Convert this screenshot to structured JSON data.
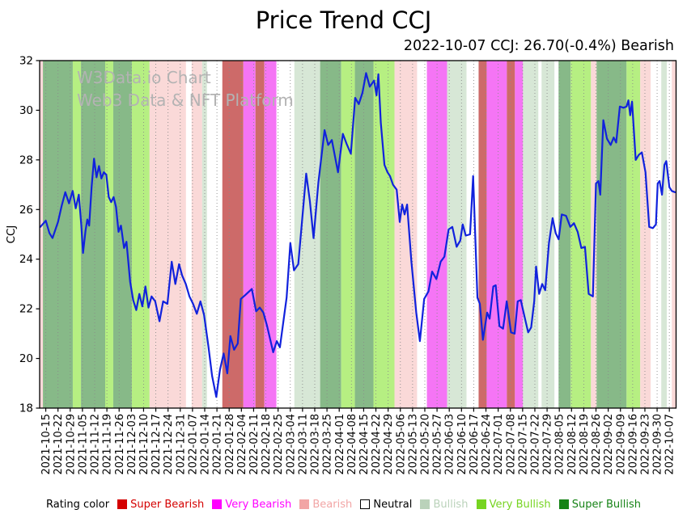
{
  "title": "Price Trend CCJ",
  "subtitle": "2022-10-07 CCJ: 26.70(-0.4%) Bearish",
  "watermark": {
    "line1": "W3Data.io Chart",
    "line2": "Web3 Data & NFT Platform"
  },
  "chart_data": {
    "type": "line",
    "title": "Price Trend CCJ",
    "subtitle": "2022-10-07 CCJ: 26.70(-0.4%) Bearish",
    "ylabel": "CCJ",
    "ylim": [
      18,
      32
    ],
    "yticks": [
      18,
      20,
      22,
      24,
      26,
      28,
      30,
      32
    ],
    "grid": "vertical-dotted-at-each-x-tick",
    "x_unit": "week_index (0 = first tick label, 1 per tick)",
    "x_tick_labels": [
      "2021-10-15",
      "2021-10-22",
      "2021-10-29",
      "2021-11-05",
      "2021-11-12",
      "2021-11-19",
      "2021-11-26",
      "2021-12-03",
      "2021-12-10",
      "2021-12-17",
      "2021-12-24",
      "2021-12-31",
      "2022-01-07",
      "2022-01-14",
      "2022-01-21",
      "2022-01-28",
      "2022-02-04",
      "2022-02-11",
      "2022-02-18",
      "2022-02-25",
      "2022-03-04",
      "2022-03-11",
      "2022-03-18",
      "2022-03-25",
      "2022-04-01",
      "2022-04-08",
      "2022-04-15",
      "2022-04-22",
      "2022-04-29",
      "2022-05-06",
      "2022-05-13",
      "2022-05-20",
      "2022-05-27",
      "2022-06-03",
      "2022-06-10",
      "2022-06-17",
      "2022-06-24",
      "2022-07-01",
      "2022-07-08",
      "2022-07-15",
      "2022-07-22",
      "2022-07-29",
      "2022-08-05",
      "2022-08-12",
      "2022-08-19",
      "2022-08-26",
      "2022-09-02",
      "2022-09-09",
      "2022-09-16",
      "2022-09-23",
      "2022-09-30",
      "2022-10-07"
    ],
    "x_domain_weeks": [
      -0.5,
      51.55
    ],
    "last_point": {
      "date": "2022-10-07",
      "value": 26.7,
      "change_pct": -0.4,
      "rating": "Bearish"
    },
    "series": [
      {
        "name": "CCJ",
        "color": "#1122dd",
        "points": [
          [
            -0.45,
            25.3
          ],
          [
            0,
            25.55
          ],
          [
            0.3,
            25.05
          ],
          [
            0.55,
            24.85
          ],
          [
            1.0,
            25.5
          ],
          [
            1.3,
            26.15
          ],
          [
            1.6,
            26.7
          ],
          [
            1.9,
            26.25
          ],
          [
            2.2,
            26.75
          ],
          [
            2.45,
            26.05
          ],
          [
            2.7,
            26.6
          ],
          [
            2.9,
            25.4
          ],
          [
            3.05,
            24.25
          ],
          [
            3.25,
            25.15
          ],
          [
            3.4,
            25.6
          ],
          [
            3.55,
            25.35
          ],
          [
            3.75,
            26.9
          ],
          [
            3.95,
            28.05
          ],
          [
            4.15,
            27.3
          ],
          [
            4.35,
            27.75
          ],
          [
            4.55,
            27.25
          ],
          [
            4.75,
            27.5
          ],
          [
            4.95,
            27.4
          ],
          [
            5.15,
            26.5
          ],
          [
            5.35,
            26.3
          ],
          [
            5.55,
            26.5
          ],
          [
            5.75,
            26.1
          ],
          [
            5.95,
            25.1
          ],
          [
            6.15,
            25.35
          ],
          [
            6.4,
            24.45
          ],
          [
            6.6,
            24.7
          ],
          [
            6.9,
            23.1
          ],
          [
            7.15,
            22.35
          ],
          [
            7.4,
            21.95
          ],
          [
            7.65,
            22.6
          ],
          [
            7.9,
            22.1
          ],
          [
            8.15,
            22.9
          ],
          [
            8.4,
            22.05
          ],
          [
            8.65,
            22.5
          ],
          [
            8.95,
            22.3
          ],
          [
            9.3,
            21.5
          ],
          [
            9.6,
            22.3
          ],
          [
            9.95,
            22.2
          ],
          [
            10.3,
            23.9
          ],
          [
            10.6,
            23.0
          ],
          [
            10.9,
            23.8
          ],
          [
            11.15,
            23.35
          ],
          [
            11.45,
            23.0
          ],
          [
            11.75,
            22.5
          ],
          [
            12.05,
            22.2
          ],
          [
            12.35,
            21.8
          ],
          [
            12.65,
            22.3
          ],
          [
            12.95,
            21.75
          ],
          [
            13.3,
            20.5
          ],
          [
            13.6,
            19.3
          ],
          [
            13.95,
            18.45
          ],
          [
            14.25,
            19.55
          ],
          [
            14.55,
            20.2
          ],
          [
            14.85,
            19.4
          ],
          [
            15.1,
            20.9
          ],
          [
            15.4,
            20.35
          ],
          [
            15.7,
            20.6
          ],
          [
            15.95,
            22.4
          ],
          [
            16.3,
            22.55
          ],
          [
            16.85,
            22.8
          ],
          [
            17.2,
            21.9
          ],
          [
            17.5,
            22.05
          ],
          [
            17.8,
            21.85
          ],
          [
            18.1,
            21.3
          ],
          [
            18.6,
            20.25
          ],
          [
            18.9,
            20.7
          ],
          [
            19.15,
            20.45
          ],
          [
            19.7,
            22.45
          ],
          [
            20.0,
            24.65
          ],
          [
            20.3,
            23.55
          ],
          [
            20.65,
            23.8
          ],
          [
            21.3,
            27.45
          ],
          [
            21.6,
            26.35
          ],
          [
            21.9,
            24.85
          ],
          [
            22.3,
            27.1
          ],
          [
            22.8,
            29.2
          ],
          [
            23.1,
            28.6
          ],
          [
            23.4,
            28.8
          ],
          [
            23.9,
            27.5
          ],
          [
            24.3,
            29.05
          ],
          [
            24.6,
            28.65
          ],
          [
            24.95,
            28.25
          ],
          [
            25.3,
            30.5
          ],
          [
            25.6,
            30.25
          ],
          [
            25.9,
            30.7
          ],
          [
            26.2,
            31.5
          ],
          [
            26.5,
            30.95
          ],
          [
            26.85,
            31.2
          ],
          [
            27.05,
            30.6
          ],
          [
            27.2,
            31.45
          ],
          [
            27.4,
            29.5
          ],
          [
            27.7,
            27.8
          ],
          [
            27.95,
            27.5
          ],
          [
            28.15,
            27.35
          ],
          [
            28.4,
            27.0
          ],
          [
            28.7,
            26.8
          ],
          [
            28.95,
            25.5
          ],
          [
            29.15,
            26.2
          ],
          [
            29.35,
            25.8
          ],
          [
            29.55,
            26.2
          ],
          [
            29.9,
            23.9
          ],
          [
            30.3,
            21.85
          ],
          [
            30.6,
            20.7
          ],
          [
            30.95,
            22.4
          ],
          [
            31.3,
            22.7
          ],
          [
            31.6,
            23.5
          ],
          [
            31.95,
            23.2
          ],
          [
            32.3,
            23.9
          ],
          [
            32.6,
            24.1
          ],
          [
            32.95,
            25.2
          ],
          [
            33.25,
            25.3
          ],
          [
            33.6,
            24.5
          ],
          [
            33.9,
            24.75
          ],
          [
            34.1,
            25.4
          ],
          [
            34.35,
            24.95
          ],
          [
            34.7,
            25.0
          ],
          [
            34.95,
            27.35
          ],
          [
            35.3,
            22.45
          ],
          [
            35.5,
            22.2
          ],
          [
            35.75,
            20.75
          ],
          [
            36.1,
            21.85
          ],
          [
            36.3,
            21.6
          ],
          [
            36.6,
            22.9
          ],
          [
            36.8,
            22.95
          ],
          [
            37.1,
            21.3
          ],
          [
            37.4,
            21.2
          ],
          [
            37.7,
            22.3
          ],
          [
            38.05,
            21.05
          ],
          [
            38.35,
            21.0
          ],
          [
            38.6,
            22.3
          ],
          [
            38.85,
            22.35
          ],
          [
            39.15,
            21.7
          ],
          [
            39.45,
            21.05
          ],
          [
            39.7,
            21.25
          ],
          [
            39.95,
            22.3
          ],
          [
            40.1,
            23.7
          ],
          [
            40.35,
            22.6
          ],
          [
            40.6,
            23.0
          ],
          [
            40.85,
            22.75
          ],
          [
            41.15,
            24.65
          ],
          [
            41.45,
            25.65
          ],
          [
            41.7,
            25.05
          ],
          [
            41.95,
            24.8
          ],
          [
            42.2,
            25.8
          ],
          [
            42.55,
            25.75
          ],
          [
            42.9,
            25.3
          ],
          [
            43.2,
            25.45
          ],
          [
            43.5,
            25.1
          ],
          [
            43.8,
            24.45
          ],
          [
            44.1,
            24.5
          ],
          [
            44.4,
            22.6
          ],
          [
            44.75,
            22.5
          ],
          [
            45.0,
            27.05
          ],
          [
            45.2,
            27.15
          ],
          [
            45.35,
            26.6
          ],
          [
            45.6,
            29.6
          ],
          [
            45.9,
            28.85
          ],
          [
            46.2,
            28.6
          ],
          [
            46.45,
            28.9
          ],
          [
            46.65,
            28.7
          ],
          [
            46.95,
            30.15
          ],
          [
            47.25,
            30.1
          ],
          [
            47.5,
            30.15
          ],
          [
            47.65,
            30.4
          ],
          [
            47.8,
            29.8
          ],
          [
            47.95,
            30.35
          ],
          [
            48.25,
            28.0
          ],
          [
            48.5,
            28.2
          ],
          [
            48.75,
            28.3
          ],
          [
            49.05,
            27.5
          ],
          [
            49.35,
            25.3
          ],
          [
            49.65,
            25.25
          ],
          [
            49.9,
            25.4
          ],
          [
            50.05,
            27.05
          ],
          [
            50.2,
            27.15
          ],
          [
            50.4,
            26.6
          ],
          [
            50.6,
            27.8
          ],
          [
            50.75,
            27.95
          ],
          [
            51.0,
            26.9
          ],
          [
            51.2,
            26.75
          ],
          [
            51.45,
            26.7
          ]
        ]
      }
    ],
    "rating_bands": [
      {
        "start": -0.5,
        "end": -0.23,
        "rating": "bearish"
      },
      {
        "start": -0.23,
        "end": 2.21,
        "rating": "super_bullish"
      },
      {
        "start": 2.21,
        "end": 2.88,
        "rating": "very_bullish"
      },
      {
        "start": 2.88,
        "end": 4.86,
        "rating": "super_bullish"
      },
      {
        "start": 4.86,
        "end": 5.52,
        "rating": "very_bullish"
      },
      {
        "start": 5.52,
        "end": 7.04,
        "rating": "super_bullish"
      },
      {
        "start": 7.04,
        "end": 8.49,
        "rating": "very_bullish"
      },
      {
        "start": 8.49,
        "end": 11.47,
        "rating": "bearish"
      },
      {
        "start": 11.47,
        "end": 11.93,
        "rating": "neutral"
      },
      {
        "start": 11.93,
        "end": 12.79,
        "rating": "bearish"
      },
      {
        "start": 12.79,
        "end": 13.19,
        "rating": "bullish"
      },
      {
        "start": 13.19,
        "end": 14.44,
        "rating": "neutral"
      },
      {
        "start": 14.44,
        "end": 16.16,
        "rating": "super_bearish"
      },
      {
        "start": 16.16,
        "end": 17.15,
        "rating": "very_bearish"
      },
      {
        "start": 17.15,
        "end": 17.88,
        "rating": "super_bearish"
      },
      {
        "start": 17.88,
        "end": 18.87,
        "rating": "very_bearish"
      },
      {
        "start": 18.87,
        "end": 20.33,
        "rating": "neutral"
      },
      {
        "start": 20.33,
        "end": 22.44,
        "rating": "bullish"
      },
      {
        "start": 22.44,
        "end": 24.16,
        "rating": "super_bullish"
      },
      {
        "start": 24.16,
        "end": 25.28,
        "rating": "very_bullish"
      },
      {
        "start": 25.28,
        "end": 26.8,
        "rating": "super_bullish"
      },
      {
        "start": 26.8,
        "end": 28.52,
        "rating": "very_bullish"
      },
      {
        "start": 28.52,
        "end": 30.37,
        "rating": "bearish"
      },
      {
        "start": 30.37,
        "end": 31.17,
        "rating": "neutral"
      },
      {
        "start": 31.17,
        "end": 32.82,
        "rating": "very_bearish"
      },
      {
        "start": 32.82,
        "end": 34.41,
        "rating": "bullish"
      },
      {
        "start": 34.41,
        "end": 35.4,
        "rating": "neutral"
      },
      {
        "start": 35.4,
        "end": 36.06,
        "rating": "super_bearish"
      },
      {
        "start": 36.06,
        "end": 37.71,
        "rating": "very_bearish"
      },
      {
        "start": 37.71,
        "end": 38.37,
        "rating": "super_bearish"
      },
      {
        "start": 38.37,
        "end": 39.03,
        "rating": "very_bearish"
      },
      {
        "start": 39.03,
        "end": 40.29,
        "rating": "bullish"
      },
      {
        "start": 40.29,
        "end": 40.55,
        "rating": "neutral"
      },
      {
        "start": 40.55,
        "end": 41.61,
        "rating": "bullish"
      },
      {
        "start": 41.61,
        "end": 41.94,
        "rating": "neutral"
      },
      {
        "start": 41.94,
        "end": 42.93,
        "rating": "super_bullish"
      },
      {
        "start": 42.93,
        "end": 44.59,
        "rating": "very_bullish"
      },
      {
        "start": 44.59,
        "end": 45.05,
        "rating": "bearish"
      },
      {
        "start": 45.05,
        "end": 47.5,
        "rating": "super_bullish"
      },
      {
        "start": 47.5,
        "end": 48.62,
        "rating": "very_bullish"
      },
      {
        "start": 48.62,
        "end": 49.48,
        "rating": "bearish"
      },
      {
        "start": 49.48,
        "end": 50.34,
        "rating": "neutral"
      },
      {
        "start": 50.34,
        "end": 50.8,
        "rating": "bullish"
      },
      {
        "start": 50.8,
        "end": 51.2,
        "rating": "neutral"
      },
      {
        "start": 51.2,
        "end": 51.55,
        "rating": "bearish"
      }
    ],
    "rating_band_fill": {
      "super_bearish": "#cd6a69",
      "very_bearish": "#f575f5",
      "bearish": "#fad9d8",
      "neutral": "#ffffff",
      "bullish": "#d7e7d6",
      "very_bullish": "#b6ef82",
      "super_bullish": "#87b988"
    },
    "legend": {
      "heading": "Rating color",
      "position": "bottom",
      "items": [
        {
          "label": "Super Bearish",
          "color": "#d40000"
        },
        {
          "label": "Very Bearish",
          "color": "#ff00ff"
        },
        {
          "label": "Bearish",
          "color": "#f2a5a5"
        },
        {
          "label": "Neutral",
          "color": "#ffffff",
          "text_color": "#000000",
          "border": "#000000"
        },
        {
          "label": "Bullish",
          "color": "#bad2ba"
        },
        {
          "label": "Very Bullish",
          "color": "#76d421"
        },
        {
          "label": "Super Bullish",
          "color": "#168316"
        }
      ]
    }
  }
}
